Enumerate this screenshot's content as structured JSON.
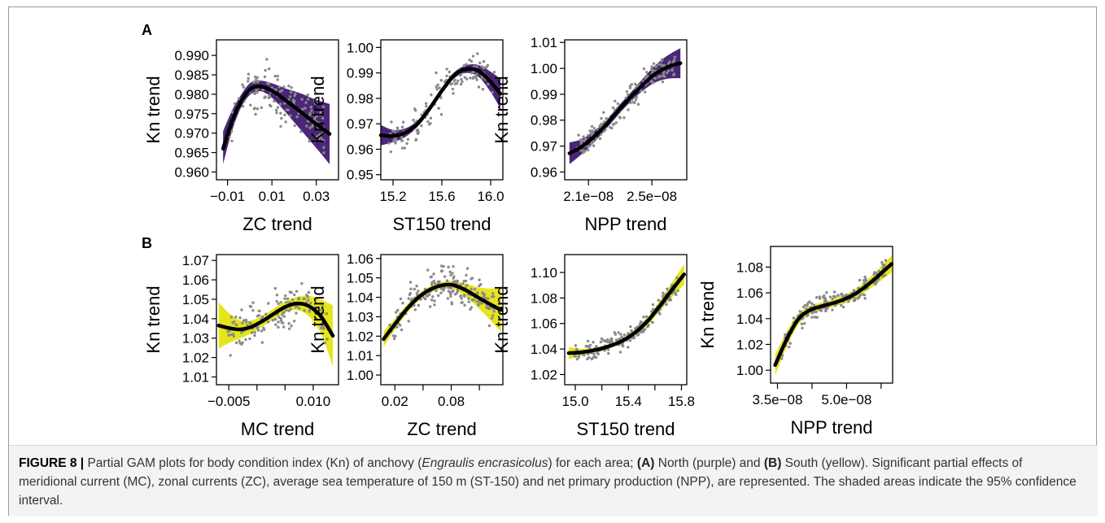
{
  "colors": {
    "north": "#4b2678",
    "south": "#e6e51c",
    "points": "#8a8a8a",
    "line": "#000000"
  },
  "rows": [
    {
      "label": "A"
    },
    {
      "label": "B"
    }
  ],
  "caption": {
    "figure_label": "FIGURE 8 |",
    "t1": " Partial GAM plots for body condition index (Kn) of anchovy (",
    "species": "Engraulis encrasicolus",
    "t2": ") for each area; ",
    "a_label": "(A)",
    "t3": " North (purple) and ",
    "b_label": "(B)",
    "t4": " South (yellow). Significant partial effects of meridional current (MC), zonal currents (ZC), average sea temperature of 150 m (ST-150) and net primary production (NPP), are represented. The shaded areas indicate the 95% confidence interval."
  },
  "chart_data": [
    {
      "type": "line",
      "panel": "A",
      "xlabel": "ZC trend",
      "ylabel": "Kn trend",
      "xlim": [
        -0.015,
        0.04
      ],
      "ylim": [
        0.958,
        0.994
      ],
      "xticks": [
        -0.01,
        0.01,
        0.03
      ],
      "xtick_labels": [
        "−0.01",
        "0.01",
        "0.03"
      ],
      "yticks": [
        0.96,
        0.965,
        0.97,
        0.975,
        0.98,
        0.985,
        0.99
      ],
      "ytick_labels": [
        "0.960",
        "0.965",
        "0.970",
        "0.975",
        "0.980",
        "0.985",
        "0.990"
      ],
      "band_color": "#4b2678",
      "fit": {
        "x": [
          -0.012,
          -0.008,
          -0.004,
          0.0,
          0.004,
          0.008,
          0.012,
          0.016,
          0.02,
          0.024,
          0.028,
          0.032,
          0.036
        ],
        "y": [
          0.966,
          0.973,
          0.978,
          0.9812,
          0.982,
          0.9815,
          0.9802,
          0.9785,
          0.9768,
          0.975,
          0.9732,
          0.9715,
          0.9698
        ],
        "lower": [
          0.962,
          0.9705,
          0.9765,
          0.9798,
          0.9808,
          0.98,
          0.978,
          0.9755,
          0.9728,
          0.9702,
          0.9675,
          0.9648,
          0.962
        ],
        "upper": [
          0.9705,
          0.9758,
          0.9798,
          0.9828,
          0.9835,
          0.9832,
          0.9824,
          0.9815,
          0.9808,
          0.98,
          0.979,
          0.9782,
          0.9775
        ]
      },
      "points": {
        "n": 160,
        "spread": 0.006,
        "seed": 11
      }
    },
    {
      "type": "line",
      "panel": "A",
      "xlabel": "ST150 trend",
      "ylabel": "Kn trend",
      "xlim": [
        15.1,
        16.1
      ],
      "ylim": [
        0.948,
        1.003
      ],
      "xticks": [
        15.2,
        15.6,
        16.0
      ],
      "xtick_labels": [
        "15.2",
        "15.6",
        "16.0"
      ],
      "yticks": [
        0.95,
        0.96,
        0.97,
        0.98,
        0.99,
        1.0
      ],
      "ytick_labels": [
        "0.95",
        "0.96",
        "0.97",
        "0.98",
        "0.99",
        "1.00"
      ],
      "band_color": "#4b2678",
      "fit": {
        "x": [
          15.1,
          15.2,
          15.3,
          15.4,
          15.5,
          15.6,
          15.7,
          15.8,
          15.9,
          16.0,
          16.08
        ],
        "y": [
          0.9655,
          0.9652,
          0.9665,
          0.97,
          0.976,
          0.983,
          0.989,
          0.9915,
          0.9908,
          0.9865,
          0.9818
        ],
        "lower": [
          0.9615,
          0.9628,
          0.9648,
          0.9688,
          0.9748,
          0.9818,
          0.9878,
          0.99,
          0.9885,
          0.9825,
          0.976
        ],
        "upper": [
          0.9695,
          0.9676,
          0.9682,
          0.9712,
          0.9772,
          0.9842,
          0.9902,
          0.993,
          0.9931,
          0.9905,
          0.9876
        ]
      },
      "points": {
        "n": 150,
        "spread": 0.007,
        "seed": 23
      }
    },
    {
      "type": "line",
      "panel": "A",
      "xlabel": "NPP trend",
      "ylabel": "Kn trend",
      "xlim": [
        1.95e-08,
        2.72e-08
      ],
      "ylim": [
        0.957,
        1.011
      ],
      "xticks": [
        2.1e-08,
        2.5e-08
      ],
      "xtick_labels": [
        "2.1e−08",
        "2.5e−08"
      ],
      "yticks": [
        0.96,
        0.97,
        0.98,
        0.99,
        1.0,
        1.01
      ],
      "ytick_labels": [
        "0.96",
        "0.97",
        "0.98",
        "0.99",
        "1.00",
        "1.01"
      ],
      "band_color": "#4b2678",
      "fit": {
        "x": [
          1.98e-08,
          2.05e-08,
          2.12e-08,
          2.2e-08,
          2.28e-08,
          2.36e-08,
          2.44e-08,
          2.52e-08,
          2.6e-08,
          2.68e-08
        ],
        "y": [
          0.9672,
          0.9695,
          0.9728,
          0.9775,
          0.9832,
          0.9885,
          0.9935,
          0.9978,
          1.0005,
          1.002
        ],
        "lower": [
          0.963,
          0.9665,
          0.9705,
          0.9758,
          0.9815,
          0.9868,
          0.9912,
          0.9945,
          0.996,
          0.9962
        ],
        "upper": [
          0.9714,
          0.9725,
          0.9751,
          0.9792,
          0.9849,
          0.9902,
          0.9958,
          1.0011,
          1.005,
          1.0078
        ]
      },
      "points": {
        "n": 190,
        "spread": 0.0045,
        "seed": 37
      }
    },
    {
      "type": "line",
      "panel": "B",
      "xlabel": "MC trend",
      "ylabel": "Kn trend",
      "xlim": [
        -0.0072,
        0.0145
      ],
      "ylim": [
        1.006,
        1.073
      ],
      "xticks": [
        -0.005,
        0.0,
        0.005,
        0.01
      ],
      "xtick_labels": [
        "−0.005",
        "",
        "",
        "0.010"
      ],
      "yticks": [
        1.01,
        1.02,
        1.03,
        1.04,
        1.05,
        1.06,
        1.07
      ],
      "ytick_labels": [
        "1.01",
        "1.02",
        "1.03",
        "1.04",
        "1.05",
        "1.06",
        "1.07"
      ],
      "band_color": "#e6e51c",
      "fit": {
        "x": [
          -0.0068,
          -0.005,
          -0.003,
          -0.001,
          0.001,
          0.003,
          0.005,
          0.007,
          0.009,
          0.011,
          0.012,
          0.0135
        ],
        "y": [
          1.0365,
          1.0352,
          1.0345,
          1.0358,
          1.0388,
          1.0425,
          1.046,
          1.0478,
          1.0468,
          1.0425,
          1.0385,
          1.0312
        ],
        "lower": [
          1.0245,
          1.0275,
          1.0298,
          1.0325,
          1.036,
          1.0398,
          1.0432,
          1.0445,
          1.0418,
          1.0345,
          1.028,
          1.0155
        ],
        "upper": [
          1.0485,
          1.0429,
          1.0392,
          1.0391,
          1.0416,
          1.0452,
          1.0488,
          1.0511,
          1.0518,
          1.0505,
          1.049,
          1.0469
        ]
      },
      "points": {
        "n": 150,
        "spread": 0.011,
        "seed": 53
      }
    },
    {
      "type": "line",
      "panel": "B",
      "xlabel": "ZC trend",
      "ylabel": "Kn trend",
      "xlim": [
        0.005,
        0.135
      ],
      "ylim": [
        0.995,
        1.062
      ],
      "xticks": [
        0.02,
        0.05,
        0.08,
        0.11
      ],
      "xtick_labels": [
        "0.02",
        "",
        "0.08",
        ""
      ],
      "yticks": [
        1.0,
        1.01,
        1.02,
        1.03,
        1.04,
        1.05,
        1.06
      ],
      "ytick_labels": [
        "1.00",
        "1.01",
        "1.02",
        "1.03",
        "1.04",
        "1.05",
        "1.06"
      ],
      "band_color": "#e6e51c",
      "fit": {
        "x": [
          0.008,
          0.02,
          0.035,
          0.05,
          0.065,
          0.08,
          0.095,
          0.11,
          0.125,
          0.133
        ],
        "y": [
          1.0185,
          1.0262,
          1.0352,
          1.0418,
          1.0455,
          1.0465,
          1.0438,
          1.0395,
          1.0355,
          1.0335
        ],
        "lower": [
          1.0145,
          1.0235,
          1.033,
          1.04,
          1.0438,
          1.0445,
          1.0405,
          1.034,
          1.0265,
          1.022
        ],
        "upper": [
          1.0225,
          1.0289,
          1.0374,
          1.0436,
          1.0472,
          1.0485,
          1.0471,
          1.045,
          1.0445,
          1.045
        ]
      },
      "points": {
        "n": 190,
        "spread": 0.009,
        "seed": 71
      }
    },
    {
      "type": "line",
      "panel": "B",
      "xlabel": "ST150 trend",
      "ylabel": "Kn trend",
      "xlim": [
        14.92,
        15.84
      ],
      "ylim": [
        1.012,
        1.114
      ],
      "xticks": [
        15.0,
        15.2,
        15.4,
        15.6,
        15.8
      ],
      "xtick_labels": [
        "15.0",
        "",
        "15.4",
        "",
        "15.8"
      ],
      "yticks": [
        1.02,
        1.04,
        1.06,
        1.08,
        1.1
      ],
      "ytick_labels": [
        "1.02",
        "1.04",
        "1.06",
        "1.08",
        "1.10"
      ],
      "band_color": "#e6e51c",
      "fit": {
        "x": [
          14.95,
          15.05,
          15.15,
          15.25,
          15.35,
          15.45,
          15.55,
          15.65,
          15.72,
          15.82
        ],
        "y": [
          1.0368,
          1.0375,
          1.0392,
          1.042,
          1.0462,
          1.0528,
          1.0625,
          1.0755,
          1.0852,
          1.0985
        ],
        "lower": [
          1.032,
          1.0348,
          1.0372,
          1.0402,
          1.0442,
          1.0502,
          1.0592,
          1.0712,
          1.0795,
          1.0905
        ],
        "upper": [
          1.0416,
          1.0402,
          1.0412,
          1.0438,
          1.0482,
          1.0554,
          1.0658,
          1.0798,
          1.0909,
          1.1065
        ]
      },
      "points": {
        "n": 200,
        "spread": 0.007,
        "seed": 89
      }
    },
    {
      "type": "line",
      "panel": "B",
      "xlabel": "NPP trend",
      "ylabel": "Kn trend",
      "xlim": [
        3.35e-08,
        6e-08
      ],
      "ylim": [
        0.99,
        1.096
      ],
      "xticks": [
        3.5e-08,
        4.25e-08,
        5e-08,
        5.75e-08
      ],
      "xtick_labels": [
        "3.5e−08",
        "",
        "5.0e−08",
        ""
      ],
      "yticks": [
        1.0,
        1.02,
        1.04,
        1.06,
        1.08
      ],
      "ytick_labels": [
        "1.00",
        "1.02",
        "1.04",
        "1.06",
        "1.08"
      ],
      "band_color": "#e6e51c",
      "fit": {
        "x": [
          3.45e-08,
          3.7e-08,
          3.95e-08,
          4.2e-08,
          4.45e-08,
          4.7e-08,
          4.95e-08,
          5.2e-08,
          5.45e-08,
          5.7e-08,
          5.98e-08
        ],
        "y": [
          1.004,
          1.024,
          1.0395,
          1.0465,
          1.0495,
          1.052,
          1.055,
          1.0595,
          1.066,
          1.0735,
          1.0825
        ],
        "lower": [
          0.996,
          1.018,
          1.0352,
          1.0432,
          1.0465,
          1.049,
          1.0518,
          1.056,
          1.0618,
          1.0682,
          1.076
        ],
        "upper": [
          1.012,
          1.03,
          1.0438,
          1.0498,
          1.0525,
          1.055,
          1.0582,
          1.063,
          1.0702,
          1.0788,
          1.089
        ]
      },
      "points": {
        "n": 180,
        "spread": 0.008,
        "seed": 97
      }
    }
  ]
}
